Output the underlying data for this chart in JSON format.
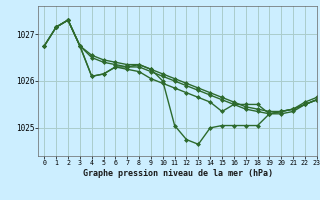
{
  "title": "Graphe pression niveau de la mer (hPa)",
  "bg_color": "#cceeff",
  "grid_color": "#aacccc",
  "line_color": "#2d6a2d",
  "xlim": [
    -0.5,
    23
  ],
  "ylim": [
    1024.4,
    1027.6
  ],
  "yticks": [
    1025,
    1026,
    1027
  ],
  "xticks": [
    0,
    1,
    2,
    3,
    4,
    5,
    6,
    7,
    8,
    9,
    10,
    11,
    12,
    13,
    14,
    15,
    16,
    17,
    18,
    19,
    20,
    21,
    22,
    23
  ],
  "lines": [
    {
      "x": [
        0,
        1,
        2,
        3,
        4,
        5,
        6,
        7,
        8,
        9,
        10,
        11,
        12,
        13,
        14,
        15,
        16,
        17,
        18,
        19,
        20,
        21,
        22,
        23
      ],
      "y": [
        1026.75,
        1027.15,
        1027.3,
        1026.75,
        1026.1,
        1026.15,
        1026.3,
        1026.3,
        1026.35,
        1026.25,
        1026.0,
        1025.05,
        1024.75,
        1024.65,
        1025.0,
        1025.05,
        1025.05,
        1025.05,
        1025.05,
        1025.3,
        1025.35,
        1025.4,
        1025.5,
        1025.6
      ],
      "marker": "D",
      "lw": 1.0,
      "ms": 2.0
    },
    {
      "x": [
        0,
        1,
        2,
        3,
        4,
        5,
        6,
        7,
        8,
        9,
        10,
        11,
        12,
        13,
        14,
        15,
        16,
        17,
        18,
        19,
        20,
        21,
        22,
        23
      ],
      "y": [
        1026.75,
        1027.15,
        1027.3,
        1026.75,
        1026.5,
        1026.4,
        1026.35,
        1026.3,
        1026.3,
        1026.2,
        1026.1,
        1026.0,
        1025.9,
        1025.8,
        1025.7,
        1025.6,
        1025.5,
        1025.4,
        1025.35,
        1025.3,
        1025.3,
        1025.35,
        1025.5,
        1025.6
      ],
      "marker": "D",
      "lw": 1.0,
      "ms": 2.0
    },
    {
      "x": [
        0,
        1,
        2,
        3,
        4,
        5,
        6,
        7,
        8,
        9,
        10,
        11,
        12,
        13,
        14,
        15,
        16,
        17,
        18,
        19,
        20,
        21,
        22,
        23
      ],
      "y": [
        1026.75,
        1027.15,
        1027.3,
        1026.75,
        1026.55,
        1026.45,
        1026.4,
        1026.35,
        1026.35,
        1026.25,
        1026.15,
        1026.05,
        1025.95,
        1025.85,
        1025.75,
        1025.65,
        1025.55,
        1025.45,
        1025.4,
        1025.35,
        1025.35,
        1025.4,
        1025.55,
        1025.65
      ],
      "marker": "D",
      "lw": 1.0,
      "ms": 2.0
    },
    {
      "x": [
        1,
        2,
        3,
        4,
        5,
        6,
        7,
        8,
        9,
        10,
        11,
        12,
        13,
        14,
        15,
        16,
        17,
        18,
        19,
        20,
        21,
        22,
        23
      ],
      "y": [
        1027.15,
        1027.3,
        1026.75,
        1026.1,
        1026.15,
        1026.3,
        1026.25,
        1026.2,
        1026.05,
        1025.95,
        1025.85,
        1025.75,
        1025.65,
        1025.55,
        1025.35,
        1025.5,
        1025.5,
        1025.5,
        1025.3,
        1025.35,
        1025.4,
        1025.5,
        1025.6
      ],
      "marker": "D",
      "lw": 1.0,
      "ms": 2.0
    }
  ]
}
